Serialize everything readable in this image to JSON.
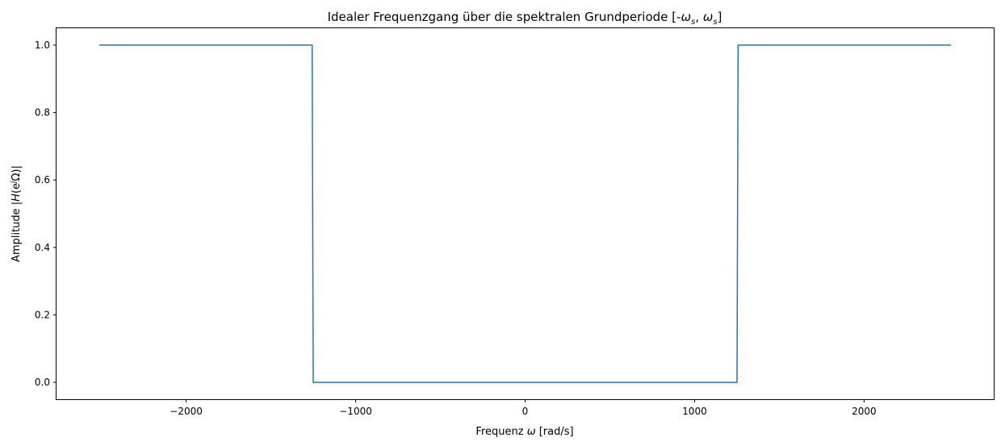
{
  "chart_data": {
    "type": "line",
    "title": "Idealer Frequenzgang über die spektralen Grundperiode [-ωs, ωs]",
    "title_parts": {
      "prefix": "Idealer Frequenzgang über die spektralen Grundperiode [-",
      "omega": "ω",
      "sub": "s",
      "sep": ", ",
      "suffix": "]"
    },
    "xlabel": "Frequenz ω [rad/s]",
    "xlabel_parts": {
      "prefix": "Frequenz ",
      "omega": "ω",
      "suffix": " [rad/s]"
    },
    "ylabel": "Amplitude |H(eʲΩ)|",
    "ylabel_parts": {
      "prefix": "Amplitude |",
      "H": "H",
      "open": "(e",
      "sup": "j",
      "omega": "Ω",
      "close": ")|"
    },
    "xlim": [
      -2765,
      2765
    ],
    "ylim": [
      -0.05,
      1.05
    ],
    "x_ticks": [
      -2000,
      -1000,
      0,
      1000,
      2000
    ],
    "x_tick_labels": [
      "−2000",
      "−1000",
      "0",
      "1000",
      "2000"
    ],
    "y_ticks": [
      0.0,
      0.2,
      0.4,
      0.6,
      0.8,
      1.0
    ],
    "y_tick_labels": [
      "0.0",
      "0.2",
      "0.4",
      "0.6",
      "0.8",
      "1.0"
    ],
    "grid": false,
    "series": [
      {
        "color": "#1f77b4",
        "x": [
          -2513,
          -1256.6,
          -1250.3,
          1250.3,
          1256.6,
          2513
        ],
        "y": [
          1,
          1,
          0,
          0,
          1,
          1
        ]
      }
    ]
  }
}
